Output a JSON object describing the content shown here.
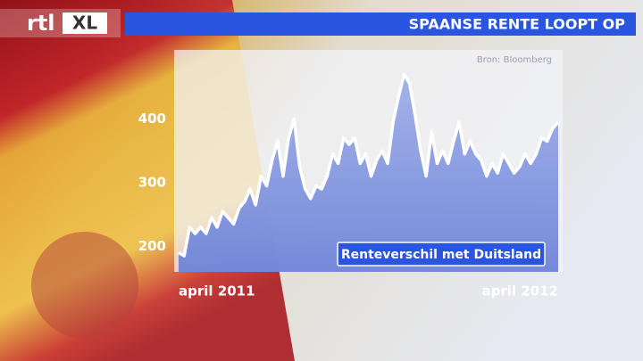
{
  "chart_data": {
    "type": "area",
    "title": "SPAANSE RENTE LOOPT OP",
    "source": "Bron: Bloomberg",
    "categories": [
      "april 2011",
      null,
      null,
      null,
      null,
      null,
      null,
      null,
      null,
      null,
      null,
      null,
      null,
      null,
      null,
      null,
      null,
      null,
      null,
      null,
      null,
      null,
      null,
      null,
      null,
      null,
      null,
      null,
      null,
      null,
      null,
      null,
      null,
      null,
      null,
      null,
      null,
      null,
      null,
      null,
      null,
      null,
      null,
      null,
      null,
      null,
      null,
      null,
      null,
      null,
      null,
      null,
      null,
      null,
      null,
      null,
      null,
      null,
      null,
      null,
      null,
      null,
      null,
      null,
      null,
      null,
      null,
      null,
      null,
      "april 2012"
    ],
    "series": [
      {
        "name": "Renteverschil met Duitsland",
        "color": "#ffffff",
        "values": [
          190,
          185,
          230,
          220,
          230,
          220,
          245,
          230,
          255,
          245,
          235,
          260,
          270,
          290,
          265,
          310,
          295,
          335,
          365,
          310,
          370,
          400,
          325,
          290,
          275,
          295,
          290,
          310,
          345,
          330,
          370,
          360,
          370,
          330,
          345,
          310,
          335,
          350,
          330,
          395,
          435,
          470,
          455,
          405,
          350,
          310,
          380,
          330,
          350,
          330,
          365,
          395,
          345,
          365,
          345,
          335,
          310,
          330,
          315,
          345,
          330,
          315,
          325,
          345,
          330,
          345,
          370,
          365,
          385,
          395
        ]
      }
    ],
    "ylim": [
      160,
      490
    ],
    "yticks": [
      200,
      300,
      400
    ],
    "grid": false
  }
}
